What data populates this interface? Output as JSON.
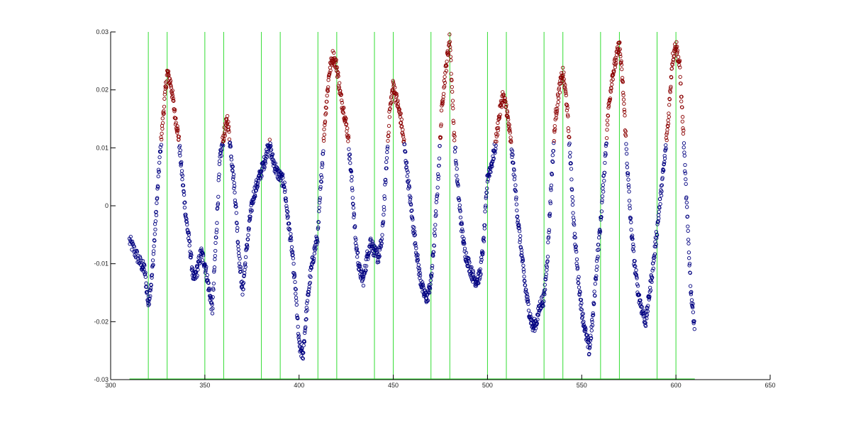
{
  "chart_data": {
    "type": "scatter",
    "title": "",
    "xlabel": "",
    "ylabel": "",
    "xlim": [
      300,
      650
    ],
    "ylim": [
      -0.03,
      0.03
    ],
    "x_ticks": [
      "300",
      "350",
      "400",
      "450",
      "500",
      "550",
      "600",
      "650"
    ],
    "y_ticks": [
      "-0.03",
      "-0.02",
      "-0.01",
      "0",
      "0.01",
      "0.02",
      "0.03"
    ],
    "grid": false,
    "legend": "none",
    "threshold": 0.011,
    "x_range": [
      310,
      610
    ],
    "colors": {
      "below_threshold": "#000080",
      "above_threshold": "#8b0000",
      "vertical_lines": "#33dd33",
      "axis": "#000000"
    },
    "vertical_lines_x": [
      320,
      330,
      350,
      360,
      380,
      390,
      410,
      420,
      440,
      450,
      470,
      480,
      500,
      510,
      530,
      540,
      560,
      570,
      590,
      600
    ],
    "signal_points": [
      [
        310,
        -0.006
      ],
      [
        313,
        -0.008
      ],
      [
        316,
        -0.01
      ],
      [
        318,
        -0.011
      ],
      [
        320,
        -0.017
      ],
      [
        322,
        -0.012
      ],
      [
        324,
        -0.002
      ],
      [
        326,
        0.008
      ],
      [
        328,
        0.016
      ],
      [
        330,
        0.023
      ],
      [
        332,
        0.021
      ],
      [
        334,
        0.016
      ],
      [
        336,
        0.012
      ],
      [
        338,
        0.005
      ],
      [
        340,
        -0.002
      ],
      [
        342,
        -0.007
      ],
      [
        344,
        -0.013
      ],
      [
        346,
        -0.011
      ],
      [
        348,
        -0.008
      ],
      [
        350,
        -0.01
      ],
      [
        352,
        -0.014
      ],
      [
        354,
        -0.018
      ],
      [
        356,
        -0.005
      ],
      [
        358,
        0.008
      ],
      [
        360,
        0.012
      ],
      [
        362,
        0.015
      ],
      [
        364,
        0.009
      ],
      [
        366,
        0.002
      ],
      [
        368,
        -0.008
      ],
      [
        370,
        -0.015
      ],
      [
        372,
        -0.008
      ],
      [
        374,
        -0.002
      ],
      [
        376,
        0.002
      ],
      [
        378,
        0.004
      ],
      [
        380,
        0.006
      ],
      [
        382,
        0.008
      ],
      [
        384,
        0.011
      ],
      [
        386,
        0.008
      ],
      [
        388,
        0.006
      ],
      [
        390,
        0.005
      ],
      [
        392,
        0.004
      ],
      [
        394,
        -0.002
      ],
      [
        396,
        -0.007
      ],
      [
        398,
        -0.014
      ],
      [
        400,
        -0.024
      ],
      [
        402,
        -0.026
      ],
      [
        404,
        -0.018
      ],
      [
        406,
        -0.012
      ],
      [
        408,
        -0.008
      ],
      [
        410,
        -0.005
      ],
      [
        412,
        0.006
      ],
      [
        414,
        0.016
      ],
      [
        416,
        0.023
      ],
      [
        418,
        0.026
      ],
      [
        420,
        0.024
      ],
      [
        422,
        0.019
      ],
      [
        424,
        0.016
      ],
      [
        426,
        0.012
      ],
      [
        428,
        0.004
      ],
      [
        430,
        -0.006
      ],
      [
        432,
        -0.011
      ],
      [
        434,
        -0.013
      ],
      [
        436,
        -0.009
      ],
      [
        438,
        -0.006
      ],
      [
        440,
        -0.008
      ],
      [
        442,
        -0.009
      ],
      [
        444,
        -0.006
      ],
      [
        446,
        0.005
      ],
      [
        448,
        0.016
      ],
      [
        450,
        0.021
      ],
      [
        452,
        0.018
      ],
      [
        454,
        0.015
      ],
      [
        456,
        0.01
      ],
      [
        458,
        0.004
      ],
      [
        460,
        -0.002
      ],
      [
        462,
        -0.007
      ],
      [
        464,
        -0.012
      ],
      [
        466,
        -0.015
      ],
      [
        468,
        -0.016
      ],
      [
        470,
        -0.013
      ],
      [
        472,
        -0.005
      ],
      [
        474,
        0.006
      ],
      [
        476,
        0.018
      ],
      [
        478,
        0.024
      ],
      [
        480,
        0.029
      ],
      [
        482,
        0.014
      ],
      [
        484,
        0.004
      ],
      [
        486,
        -0.003
      ],
      [
        488,
        -0.008
      ],
      [
        490,
        -0.01
      ],
      [
        492,
        -0.012
      ],
      [
        494,
        -0.013
      ],
      [
        496,
        -0.012
      ],
      [
        498,
        -0.006
      ],
      [
        500,
        0.005
      ],
      [
        502,
        0.007
      ],
      [
        504,
        0.01
      ],
      [
        506,
        0.015
      ],
      [
        508,
        0.019
      ],
      [
        510,
        0.017
      ],
      [
        512,
        0.012
      ],
      [
        514,
        0.006
      ],
      [
        516,
        -0.002
      ],
      [
        518,
        -0.008
      ],
      [
        520,
        -0.014
      ],
      [
        522,
        -0.018
      ],
      [
        524,
        -0.021
      ],
      [
        526,
        -0.02
      ],
      [
        528,
        -0.017
      ],
      [
        530,
        -0.016
      ],
      [
        532,
        -0.008
      ],
      [
        534,
        0.005
      ],
      [
        536,
        0.015
      ],
      [
        538,
        0.02
      ],
      [
        540,
        0.023
      ],
      [
        542,
        0.018
      ],
      [
        544,
        0.008
      ],
      [
        546,
        -0.004
      ],
      [
        548,
        -0.012
      ],
      [
        550,
        -0.018
      ],
      [
        552,
        -0.022
      ],
      [
        554,
        -0.025
      ],
      [
        556,
        -0.019
      ],
      [
        558,
        -0.01
      ],
      [
        560,
        -0.003
      ],
      [
        562,
        0.006
      ],
      [
        564,
        0.016
      ],
      [
        566,
        0.022
      ],
      [
        568,
        0.025
      ],
      [
        570,
        0.028
      ],
      [
        572,
        0.02
      ],
      [
        574,
        0.008
      ],
      [
        576,
        -0.003
      ],
      [
        578,
        -0.01
      ],
      [
        580,
        -0.015
      ],
      [
        582,
        -0.018
      ],
      [
        584,
        -0.02
      ],
      [
        586,
        -0.015
      ],
      [
        588,
        -0.01
      ],
      [
        590,
        -0.004
      ],
      [
        592,
        0.002
      ],
      [
        594,
        0.008
      ],
      [
        596,
        0.015
      ],
      [
        598,
        0.025
      ],
      [
        600,
        0.028
      ],
      [
        602,
        0.024
      ],
      [
        604,
        0.012
      ],
      [
        606,
        -0.002
      ],
      [
        608,
        -0.015
      ],
      [
        610,
        -0.021
      ]
    ]
  }
}
